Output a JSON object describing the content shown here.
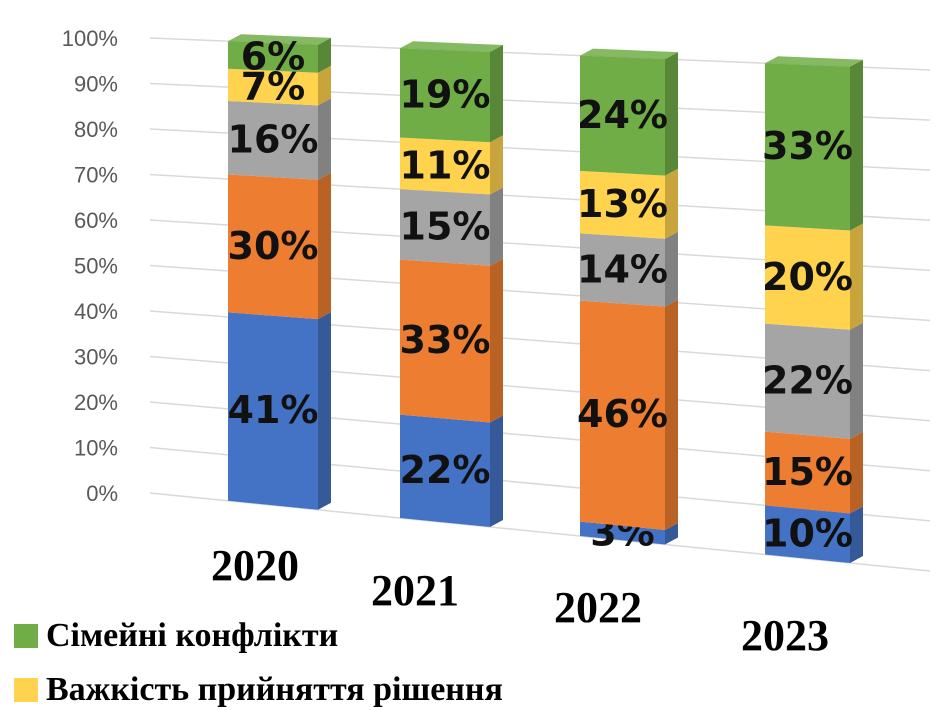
{
  "chart_data": {
    "type": "bar3d_stacked_percent",
    "categories": [
      "2020",
      "2021",
      "2022",
      "2023"
    ],
    "series": [
      {
        "color": "#4472c4",
        "values": [
          41,
          22,
          3,
          10
        ],
        "value_labels": [
          "41%",
          "22%",
          "3%",
          "10%"
        ]
      },
      {
        "color": "#ed7d31",
        "values": [
          30,
          33,
          46,
          15
        ],
        "value_labels": [
          "30%",
          "33%",
          "46%",
          "15%"
        ]
      },
      {
        "color": "#a5a5a5",
        "values": [
          16,
          15,
          14,
          22
        ],
        "value_labels": [
          "16%",
          "15%",
          "14%",
          "22%"
        ]
      },
      {
        "name": "Важкість прийняття рішення",
        "color": "#ffd34d",
        "values": [
          7,
          11,
          13,
          20
        ],
        "value_labels": [
          "7%",
          "11%",
          "13%",
          "20%"
        ]
      },
      {
        "name": "Сімейні конфлікти",
        "color": "#70ad47",
        "values": [
          6,
          19,
          24,
          33
        ],
        "value_labels": [
          "6%",
          "19%",
          "24%",
          "33%"
        ]
      }
    ],
    "ylim": [
      0,
      100
    ],
    "yticks": [
      {
        "value": 0,
        "label": "0%"
      },
      {
        "value": 10,
        "label": "10%"
      },
      {
        "value": 20,
        "label": "20%"
      },
      {
        "value": 30,
        "label": "30%"
      },
      {
        "value": 40,
        "label": "40%"
      },
      {
        "value": 50,
        "label": "50%"
      },
      {
        "value": 60,
        "label": "60%"
      },
      {
        "value": 70,
        "label": "70%"
      },
      {
        "value": 80,
        "label": "80%"
      },
      {
        "value": 90,
        "label": "90%"
      },
      {
        "value": 100,
        "label": "100%"
      }
    ],
    "grid": true
  }
}
